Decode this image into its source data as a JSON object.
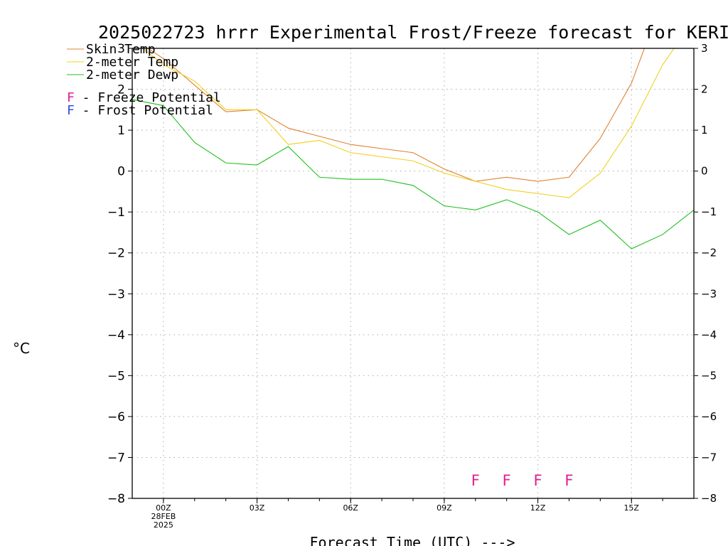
{
  "chart_data": {
    "type": "line",
    "title": "2025022723 hrrr Experimental Frost/Freeze forecast for KERI",
    "xlabel": "Forecast Time (UTC) --->",
    "ylabel": "°C",
    "ylim": [
      -8,
      3
    ],
    "yticks": [
      -8,
      -7,
      -6,
      -5,
      -4,
      -3,
      -2,
      -1,
      0,
      1,
      2,
      3
    ],
    "yticks_right": [
      -8,
      -7,
      -6,
      -5,
      -4,
      -3,
      -2,
      -1,
      0,
      1,
      2,
      3
    ],
    "xlim": [
      -1,
      17
    ],
    "grid": true,
    "x": [
      -1,
      0,
      1,
      2,
      3,
      4,
      5,
      6,
      7,
      8,
      9,
      10,
      11,
      12,
      13,
      14,
      15,
      16,
      17
    ],
    "xtick_labels": [
      {
        "x": 0,
        "lines": [
          "00Z",
          "28FEB",
          "2025"
        ]
      },
      {
        "x": 3,
        "lines": [
          "03Z"
        ]
      },
      {
        "x": 6,
        "lines": [
          "06Z"
        ]
      },
      {
        "x": 9,
        "lines": [
          "09Z"
        ]
      },
      {
        "x": 12,
        "lines": [
          "12Z"
        ]
      },
      {
        "x": 15,
        "lines": [
          "15Z"
        ]
      }
    ],
    "series": [
      {
        "name": "Skin Temp",
        "color": "#e08030",
        "values": [
          3.25,
          2.75,
          2.1,
          1.45,
          1.5,
          1.05,
          0.85,
          0.65,
          0.55,
          0.45,
          0.05,
          -0.25,
          -0.15,
          -0.25,
          -0.15,
          0.8,
          2.15,
          4.2,
          5.0
        ]
      },
      {
        "name": "2-meter Temp",
        "color": "#f0d020",
        "values": [
          3.2,
          2.6,
          2.2,
          1.5,
          1.5,
          0.65,
          0.75,
          0.45,
          0.35,
          0.25,
          -0.05,
          -0.25,
          -0.45,
          -0.55,
          -0.65,
          -0.05,
          1.1,
          2.6,
          3.7
        ]
      },
      {
        "name": "2-meter Dewp",
        "color": "#20c020",
        "values": [
          1.75,
          1.6,
          0.7,
          0.2,
          0.15,
          0.6,
          -0.15,
          -0.2,
          -0.2,
          -0.35,
          -0.85,
          -0.95,
          -0.7,
          -1.0,
          -1.55,
          -1.2,
          -1.9,
          -1.55,
          -0.95
        ]
      }
    ],
    "potential_legend": [
      {
        "marker": "F",
        "label": " - Freeze Potential",
        "color": "#e0208f"
      },
      {
        "marker": "F",
        "label": " - Frost Potential",
        "color": "#3050e0"
      }
    ],
    "freeze_markers": {
      "text": "F",
      "y": -7.55,
      "x": [
        10,
        11,
        12,
        13
      ],
      "color": "#e0208f"
    }
  }
}
